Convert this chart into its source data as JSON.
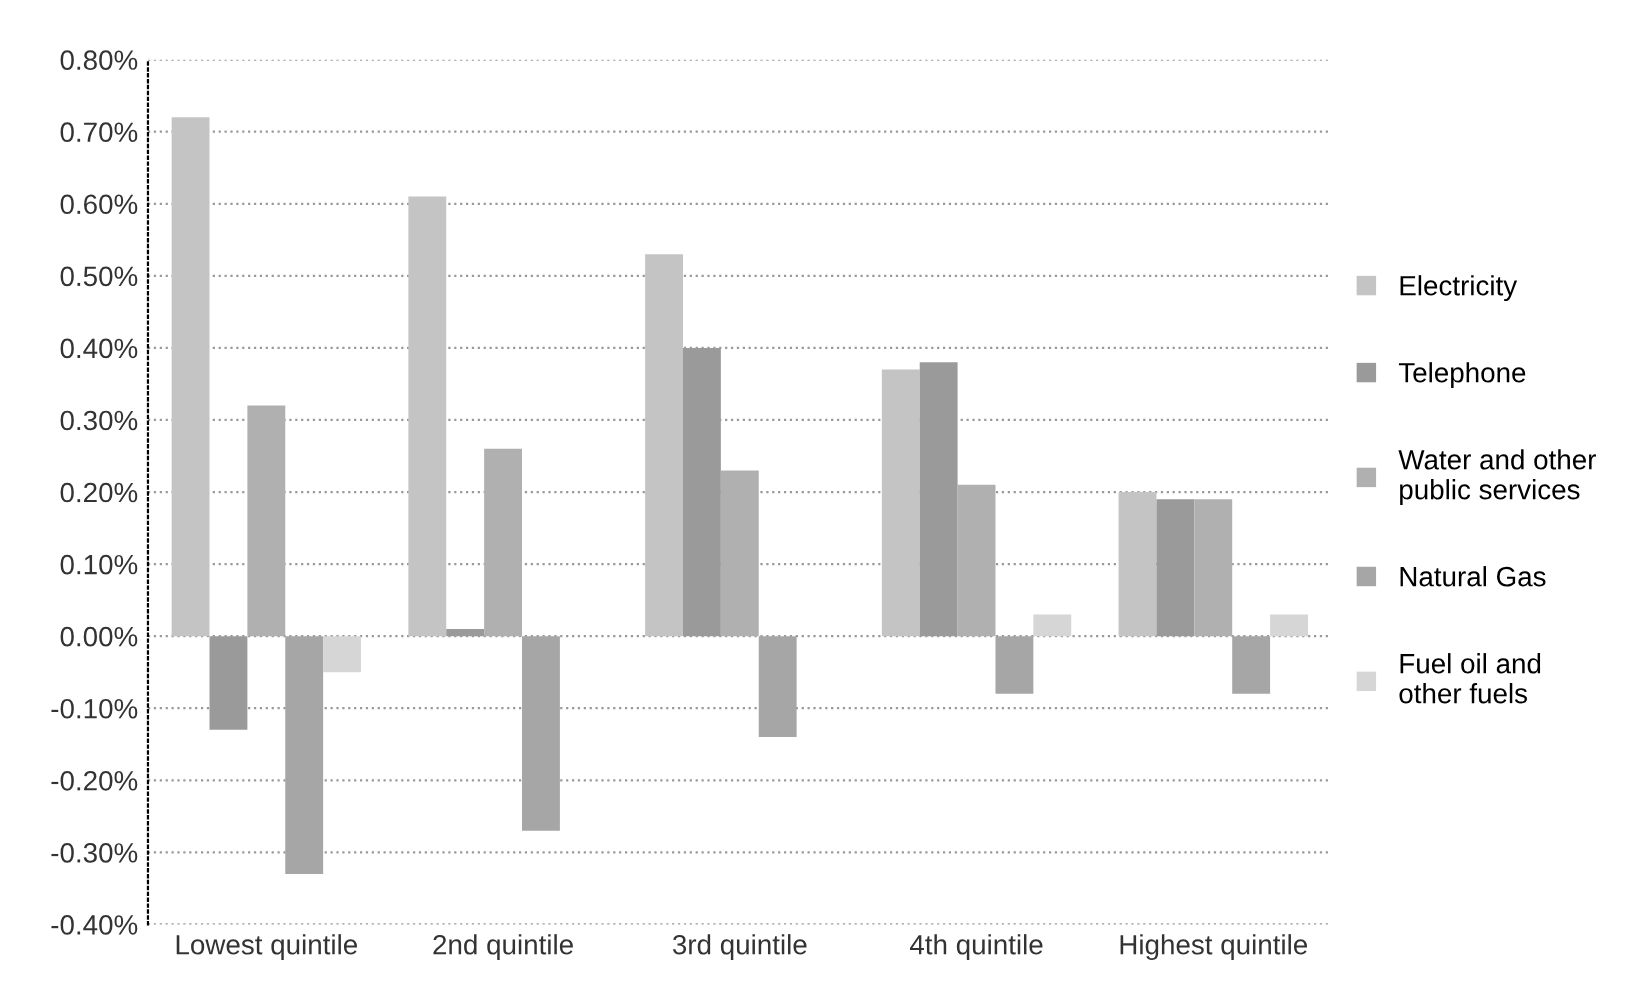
{
  "chart_data": {
    "type": "bar",
    "categories": [
      "Lowest quintile",
      "2nd quintile",
      "3rd quintile",
      "4th quintile",
      "Highest quintile"
    ],
    "series": [
      {
        "name": "Electricity",
        "color": "#c4c4c4",
        "values": [
          0.72,
          0.61,
          0.53,
          0.37,
          0.2
        ]
      },
      {
        "name": "Telephone",
        "color": "#9a9a9a",
        "values": [
          -0.13,
          0.01,
          0.4,
          0.38,
          0.19
        ]
      },
      {
        "name": "Water and other\npublic services",
        "color": "#b0b0b0",
        "values": [
          0.32,
          0.26,
          0.23,
          0.21,
          0.19
        ]
      },
      {
        "name": "Natural Gas",
        "color": "#a6a6a6",
        "values": [
          -0.33,
          -0.27,
          -0.14,
          -0.08,
          -0.08
        ]
      },
      {
        "name": "Fuel oil and\nother fuels",
        "color": "#d6d6d6",
        "values": [
          -0.05,
          0.0,
          0.0,
          0.03,
          0.03
        ]
      }
    ],
    "ylim": [
      -0.4,
      0.8
    ],
    "yticks": [
      {
        "value": -0.4,
        "label": "-0.40%"
      },
      {
        "value": -0.3,
        "label": "-0.30%"
      },
      {
        "value": -0.2,
        "label": "-0.20%"
      },
      {
        "value": -0.1,
        "label": "-0.10%"
      },
      {
        "value": 0,
        "label": "0.00%"
      },
      {
        "value": 0.1,
        "label": "0.10%"
      },
      {
        "value": 0.2,
        "label": "0.20%"
      },
      {
        "value": 0.3,
        "label": "0.30%"
      },
      {
        "value": 0.4,
        "label": "0.40%"
      },
      {
        "value": 0.5,
        "label": "0.50%"
      },
      {
        "value": 0.6,
        "label": "0.60%"
      },
      {
        "value": 0.7,
        "label": "0.70%"
      },
      {
        "value": 0.8,
        "label": "0.80%"
      }
    ],
    "grid": "y",
    "legend": "right"
  }
}
